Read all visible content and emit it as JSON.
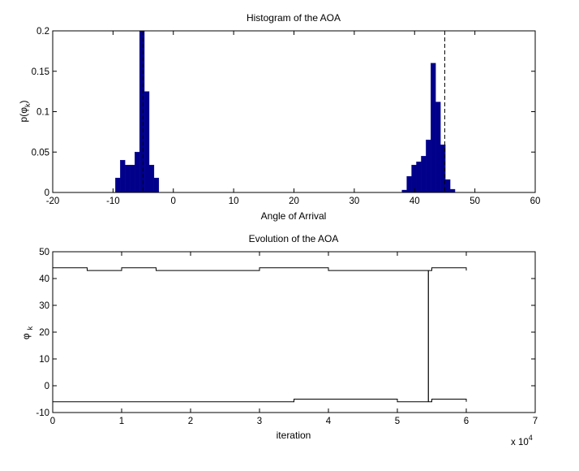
{
  "colors": {
    "bar": "#00008b",
    "line": "#000000",
    "axis": "#000000",
    "background": "#ffffff"
  },
  "chart_data": [
    {
      "type": "bar",
      "title": "Histogram of the AOA",
      "xlabel": "Angle of Arrival",
      "ylabel": "p(φₖ)",
      "ylabel_main": "p(φ",
      "ylabel_sub": "k",
      "ylabel_close": ")",
      "xlim": [
        -20,
        60
      ],
      "ylim": [
        0,
        0.2
      ],
      "xticks": [
        "-20",
        "-10",
        "0",
        "10",
        "20",
        "30",
        "40",
        "50",
        "60"
      ],
      "yticks": [
        "0",
        "0.05",
        "0.1",
        "0.15",
        "0.2"
      ],
      "bin_width": 0.8,
      "bins": [
        {
          "x": -9.6,
          "y": 0.018
        },
        {
          "x": -8.8,
          "y": 0.04
        },
        {
          "x": -8.0,
          "y": 0.034
        },
        {
          "x": -7.2,
          "y": 0.034
        },
        {
          "x": -6.4,
          "y": 0.05
        },
        {
          "x": -5.6,
          "y": 0.2
        },
        {
          "x": -4.8,
          "y": 0.125
        },
        {
          "x": -4.0,
          "y": 0.034
        },
        {
          "x": -3.2,
          "y": 0.018
        },
        {
          "x": 37.9,
          "y": 0.003
        },
        {
          "x": 38.7,
          "y": 0.02
        },
        {
          "x": 39.5,
          "y": 0.034
        },
        {
          "x": 40.3,
          "y": 0.038
        },
        {
          "x": 41.1,
          "y": 0.045
        },
        {
          "x": 41.9,
          "y": 0.065
        },
        {
          "x": 42.7,
          "y": 0.16
        },
        {
          "x": 43.5,
          "y": 0.112
        },
        {
          "x": 44.3,
          "y": 0.059
        },
        {
          "x": 45.1,
          "y": 0.016
        },
        {
          "x": 45.9,
          "y": 0.004
        }
      ],
      "reference_lines_x": [
        -5,
        45
      ]
    },
    {
      "type": "line",
      "title": "Evolution of the AOA",
      "xlabel": "iteration",
      "ylabel": "φₖ",
      "ylabel_main": "φ",
      "ylabel_sub": "k",
      "xlim": [
        0,
        7
      ],
      "ylim": [
        -10,
        50
      ],
      "x_multiplier": "x 10",
      "x_multiplier_exp": "4",
      "xticks": [
        "0",
        "1",
        "2",
        "3",
        "4",
        "5",
        "6",
        "7"
      ],
      "yticks": [
        "-10",
        "0",
        "10",
        "20",
        "30",
        "40",
        "50"
      ],
      "series": [
        {
          "x": [
            0.0,
            0.5,
            1.0,
            1.5,
            2.0,
            2.5,
            3.0,
            3.5,
            4.0,
            4.5,
            5.0,
            5.4,
            5.5,
            6.0
          ],
          "y": [
            44,
            43,
            44,
            43,
            43,
            43,
            44,
            44,
            43,
            43,
            43,
            43,
            44,
            43
          ]
        },
        {
          "x": [
            0.0,
            0.5,
            1.0,
            1.5,
            2.0,
            2.5,
            3.0,
            3.5,
            4.0,
            4.5,
            5.0,
            5.4,
            5.5,
            6.0
          ],
          "y": [
            -6,
            -6,
            -6,
            -6,
            -6,
            -6,
            -6,
            -5,
            -5,
            -5,
            -6,
            -6,
            -5,
            -6
          ]
        }
      ],
      "jump_x": 5.45
    }
  ]
}
